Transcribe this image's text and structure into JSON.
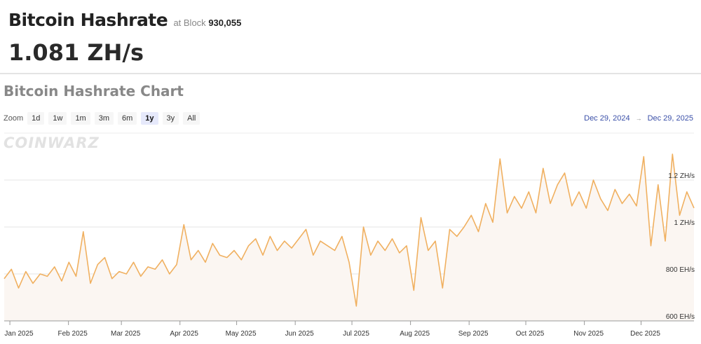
{
  "header": {
    "title": "Bitcoin Hashrate",
    "at_block_label": "at Block",
    "block": "930,055",
    "value": "1.081 ZH/s"
  },
  "chart_title": "Bitcoin Hashrate Chart",
  "zoom": {
    "label": "Zoom",
    "buttons": [
      "1d",
      "1w",
      "1m",
      "3m",
      "6m",
      "1y",
      "3y",
      "All"
    ],
    "active": "1y"
  },
  "range": {
    "from": "Dec 29, 2024",
    "to": "Dec 29, 2025"
  },
  "logo": "COINWARZ",
  "colors": {
    "line": "#f0b060",
    "fill": "#fbf6f2",
    "range": "#3a4fa8"
  },
  "chart_data": {
    "type": "area",
    "title": "Bitcoin Hashrate Chart",
    "unit": "EH/s",
    "x_start": "2024-12-29",
    "x_end": "2025-12-29",
    "ylim": [
      600,
      1300
    ],
    "y_ticks": [
      {
        "v": 600,
        "label": "600 EH/s"
      },
      {
        "v": 800,
        "label": "800 EH/s"
      },
      {
        "v": 1000,
        "label": "1 ZH/s"
      },
      {
        "v": 1200,
        "label": "1.2 ZH/s"
      }
    ],
    "x_ticks": [
      {
        "day": 3,
        "label": "Jan 2025"
      },
      {
        "day": 34,
        "label": "Feb 2025"
      },
      {
        "day": 62,
        "label": "Mar 2025"
      },
      {
        "day": 93,
        "label": "Apr 2025"
      },
      {
        "day": 123,
        "label": "May 2025"
      },
      {
        "day": 154,
        "label": "Jun 2025"
      },
      {
        "day": 184,
        "label": "Jul 2025"
      },
      {
        "day": 215,
        "label": "Aug 2025"
      },
      {
        "day": 246,
        "label": "Sep 2025"
      },
      {
        "day": 276,
        "label": "Oct 2025"
      },
      {
        "day": 307,
        "label": "Nov 2025"
      },
      {
        "day": 337,
        "label": "Dec 2025"
      }
    ],
    "values": [
      780,
      820,
      740,
      810,
      760,
      800,
      790,
      830,
      770,
      850,
      790,
      980,
      760,
      840,
      870,
      780,
      810,
      800,
      850,
      790,
      830,
      820,
      860,
      800,
      840,
      1010,
      860,
      900,
      850,
      930,
      880,
      870,
      900,
      860,
      920,
      950,
      880,
      960,
      900,
      940,
      910,
      950,
      990,
      880,
      940,
      920,
      900,
      960,
      850,
      663,
      1000,
      880,
      940,
      900,
      950,
      890,
      920,
      730,
      1040,
      900,
      940,
      740,
      990,
      960,
      1000,
      1050,
      980,
      1100,
      1020,
      1290,
      1060,
      1130,
      1080,
      1150,
      1060,
      1250,
      1100,
      1180,
      1230,
      1090,
      1150,
      1080,
      1200,
      1120,
      1070,
      1160,
      1100,
      1140,
      1090,
      1300,
      920,
      1180,
      940,
      1310,
      1050,
      1150,
      1081
    ]
  }
}
